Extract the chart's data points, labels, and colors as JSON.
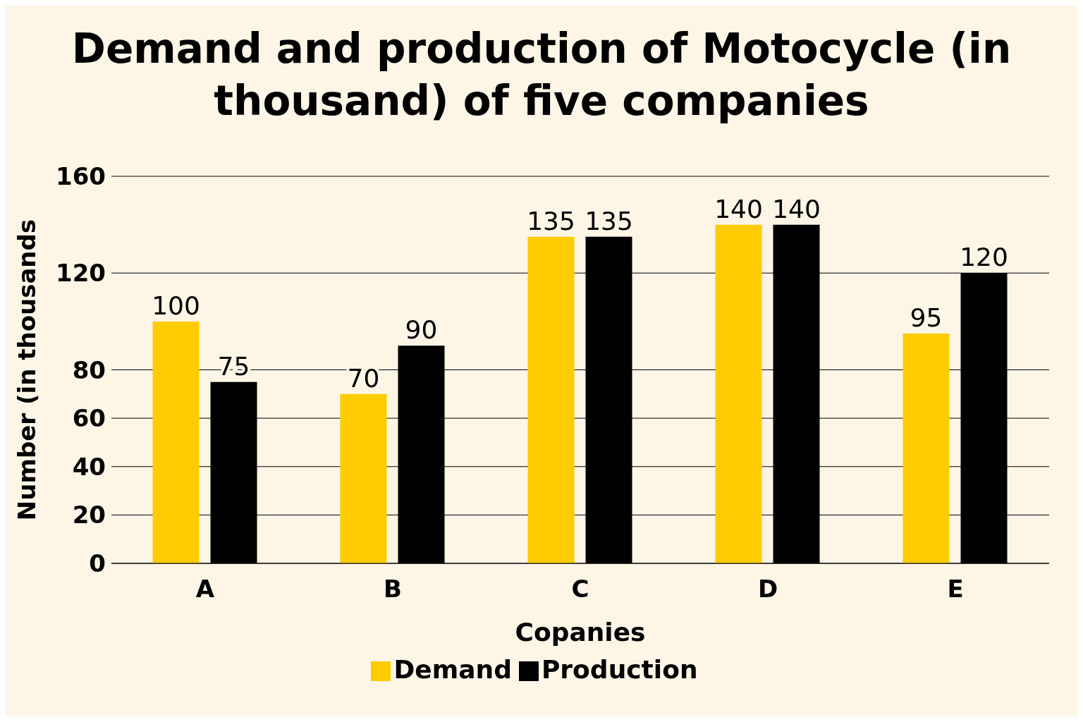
{
  "chart_data": {
    "type": "bar",
    "title": "Demand and production of Motocycle (in thousand) of five companies",
    "xlabel": "Copanies",
    "ylabel": "Number (in thousands",
    "categories": [
      "A",
      "B",
      "C",
      "D",
      "E"
    ],
    "series": [
      {
        "name": "Demand",
        "color": "#ffcc00",
        "values": [
          100,
          70,
          135,
          140,
          95
        ]
      },
      {
        "name": "Production",
        "color": "#000000",
        "values": [
          75,
          90,
          135,
          140,
          120
        ]
      }
    ],
    "ylim": [
      0,
      160
    ],
    "yticks": [
      0,
      20,
      40,
      60,
      80,
      120,
      160
    ],
    "grid": "y",
    "legend": "bottom",
    "data_labels": true
  }
}
